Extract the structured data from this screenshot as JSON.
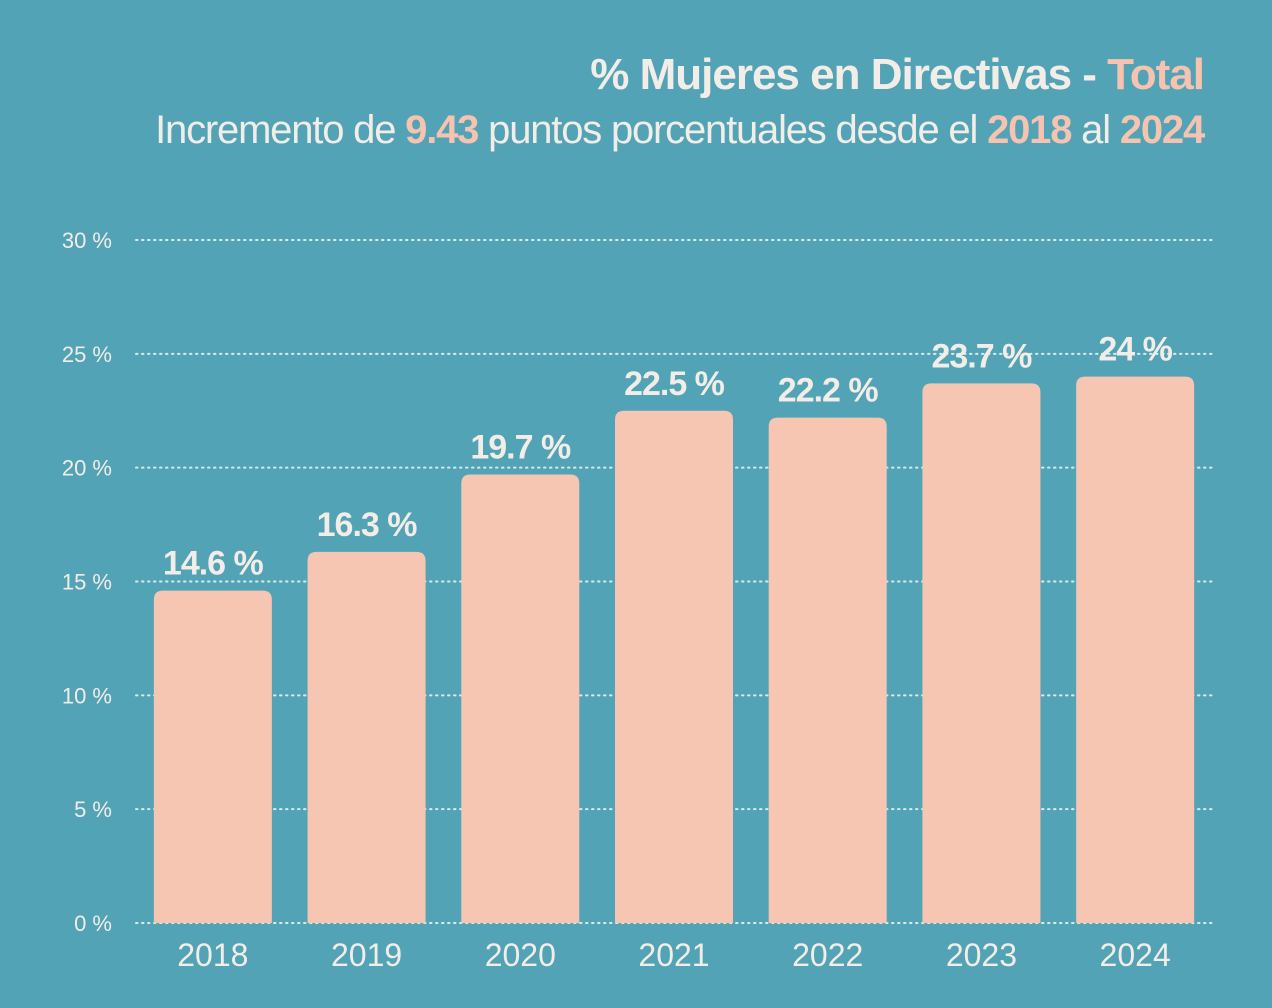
{
  "colors": {
    "background": "#52a3b5",
    "bar": "#f6c6b3",
    "text": "#f3ede8",
    "accent": "#f6c3b0",
    "grid": "#e8f2f4"
  },
  "header": {
    "title_main": "% Mujeres en Directivas - ",
    "title_accent": "Total",
    "subtitle_part1": "Incremento de ",
    "subtitle_value": "9.43",
    "subtitle_part2": " puntos porcentuales desde el ",
    "subtitle_from": "2018",
    "subtitle_part3": " al ",
    "subtitle_to": "2024"
  },
  "chart_data": {
    "type": "bar",
    "title": "% Mujeres en Directivas - Total",
    "subtitle": "Incremento de 9.43 puntos porcentuales desde el 2018 al 2024",
    "categories": [
      "2018",
      "2019",
      "2020",
      "2021",
      "2022",
      "2023",
      "2024"
    ],
    "values": [
      14.6,
      16.3,
      19.7,
      22.5,
      22.2,
      23.7,
      24
    ],
    "data_labels": [
      "14.6 %",
      "16.3 %",
      "19.7 %",
      "22.5 %",
      "22.2 %",
      "23.7 %",
      "24 %"
    ],
    "xlabel": "",
    "ylabel": "",
    "ylim": [
      0,
      30
    ],
    "yticks": [
      0,
      5,
      10,
      15,
      20,
      25,
      30
    ],
    "ytick_labels": [
      "0 %",
      "5 %",
      "10 %",
      "15 %",
      "20 %",
      "25 %",
      "30 %"
    ],
    "grid": true,
    "grid_style": "dotted",
    "legend": "none"
  }
}
